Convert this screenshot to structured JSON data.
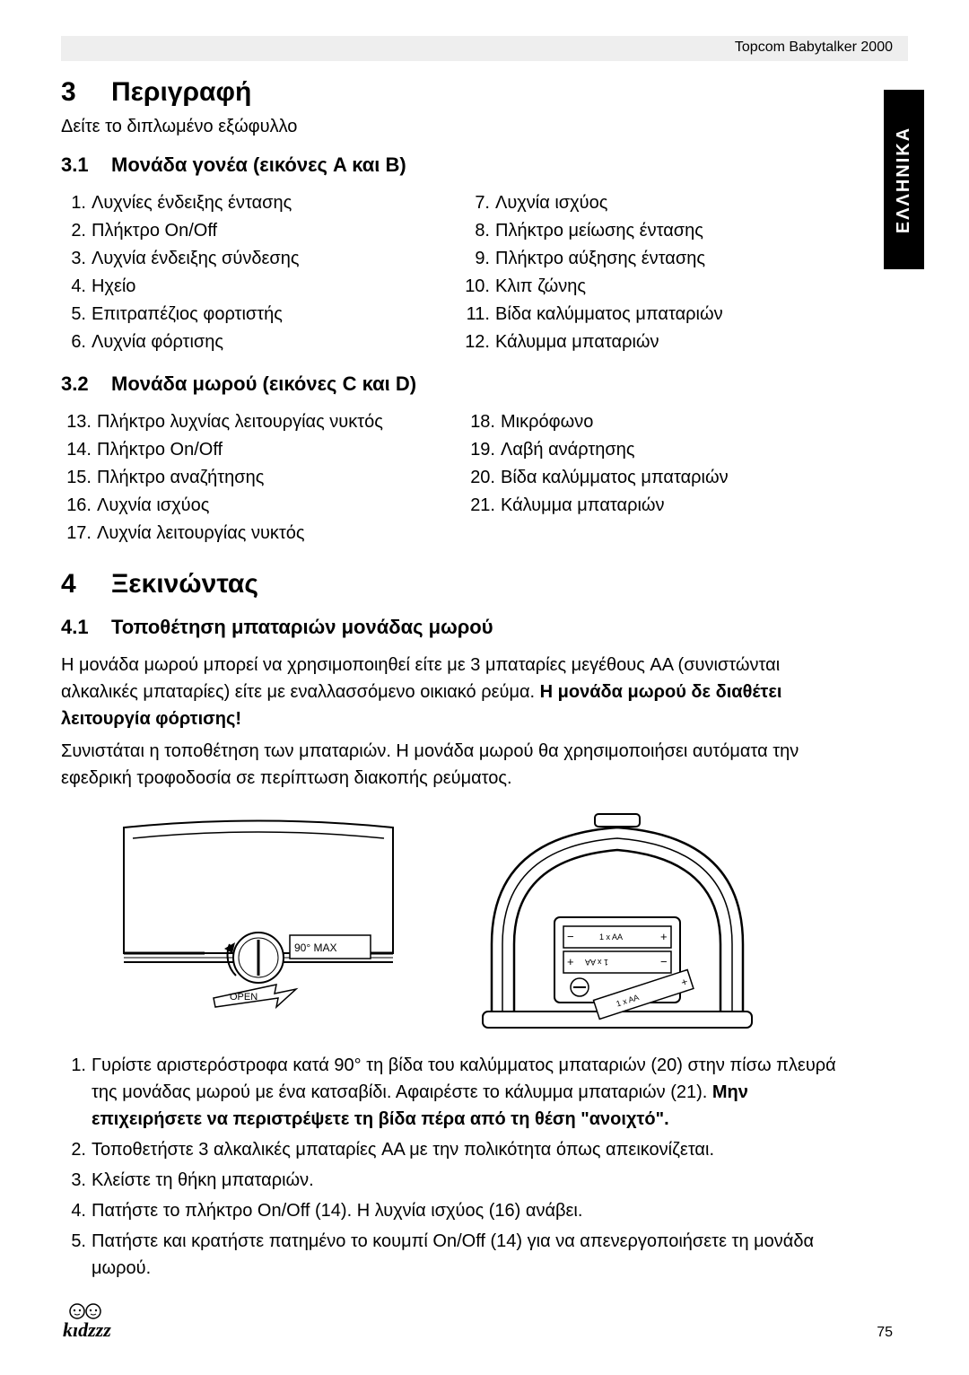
{
  "header": {
    "product": "Topcom Babytalker 2000"
  },
  "side_tab": "ΕΛΛΗΝΙΚΑ",
  "section3": {
    "num": "3",
    "title": "Περιγραφή",
    "intro": "Δείτε το διπλωμένο εξώφυλλο",
    "sub1": {
      "num": "3.1",
      "title": "Μονάδα γονέα (εικόνες A και B)",
      "left": [
        {
          "n": "1.",
          "t": "Λυχνίες ένδειξης έντασης"
        },
        {
          "n": "2.",
          "t": "Πλήκτρο On/Off"
        },
        {
          "n": "3.",
          "t": "Λυχνία ένδειξης σύνδεσης"
        },
        {
          "n": "4.",
          "t": "Ηχείο"
        },
        {
          "n": "5.",
          "t": "Επιτραπέζιος φορτιστής"
        },
        {
          "n": "6.",
          "t": "Λυχνία φόρτισης"
        }
      ],
      "right": [
        {
          "n": "7.",
          "t": "Λυχνία ισχύος"
        },
        {
          "n": "8.",
          "t": "Πλήκτρο μείωσης έντασης"
        },
        {
          "n": "9.",
          "t": "Πλήκτρο αύξησης έντασης"
        },
        {
          "n": "10.",
          "t": "Κλιπ ζώνης"
        },
        {
          "n": "11.",
          "t": "Βίδα καλύμματος μπαταριών"
        },
        {
          "n": "12.",
          "t": "Κάλυμμα μπαταριών"
        }
      ]
    },
    "sub2": {
      "num": "3.2",
      "title": "Μονάδα μωρού (εικόνες C και D)",
      "left": [
        {
          "n": "13.",
          "t": "Πλήκτρο λυχνίας λειτουργίας νυκτός"
        },
        {
          "n": "14.",
          "t": "Πλήκτρο On/Off"
        },
        {
          "n": "15.",
          "t": "Πλήκτρο αναζήτησης"
        },
        {
          "n": "16.",
          "t": "Λυχνία ισχύος"
        },
        {
          "n": "17.",
          "t": "Λυχνία λειτουργίας νυκτός"
        }
      ],
      "right": [
        {
          "n": "18.",
          "t": "Μικρόφωνο"
        },
        {
          "n": "19.",
          "t": "Λαβή ανάρτησης"
        },
        {
          "n": "20.",
          "t": "Βίδα καλύμματος μπαταριών"
        },
        {
          "n": "21.",
          "t": "Κάλυμμα μπαταριών"
        }
      ]
    }
  },
  "section4": {
    "num": "4",
    "title": "Ξεκινώντας",
    "sub1": {
      "num": "4.1",
      "title": "Τοποθέτηση μπαταριών μονάδας μωρού",
      "p1a": "Η μονάδα μωρού μπορεί να χρησιμοποιηθεί είτε με 3 μπαταρίες μεγέθους AA (συνιστώνται αλκαλικές μπαταρίες) είτε με εναλλασσόμενο οικιακό ρεύμα. ",
      "p1b": "Η μονάδα μωρού δε διαθέτει λειτουργία φόρτισης!",
      "p2": "Συνιστάται η τοποθέτηση των μπαταριών. Η μονάδα μωρού θα χρησιμοποιήσει αυτόματα την εφεδρική τροφοδοσία σε περίπτωση διακοπής ρεύματος.",
      "fig1_label": "90° MAX",
      "fig1_open": "OPEN",
      "fig2_aa": "1 x AA",
      "steps": [
        {
          "n": "1.",
          "t": "Γυρίστε αριστερόστροφα κατά 90° τη βίδα του καλύμματος μπαταριών (20) στην πίσω πλευρά της μονάδας μωρού με ένα κατσαβίδι. Αφαιρέστε το κάλυμμα μπαταριών (21). ",
          "bold": "Μην επιχειρήσετε να περιστρέψετε τη βίδα πέρα από τη θέση \"ανοιχτό\"."
        },
        {
          "n": "2.",
          "t": "Τοποθετήστε 3 αλκαλικές μπαταρίες AA με την πολικότητα όπως απεικονίζεται."
        },
        {
          "n": "3.",
          "t": "Κλείστε τη θήκη μπαταριών."
        },
        {
          "n": "4.",
          "t": "Πατήστε το πλήκτρο On/Off (14). Η λυχνία ισχύος (16) ανάβει."
        },
        {
          "n": "5.",
          "t": "Πατήστε και κρατήστε πατημένο το κουμπί On/Off (14) για να απενεργοποιήσετε τη μονάδα μωρού."
        }
      ]
    }
  },
  "page_number": "75",
  "logo": "kidzzz"
}
